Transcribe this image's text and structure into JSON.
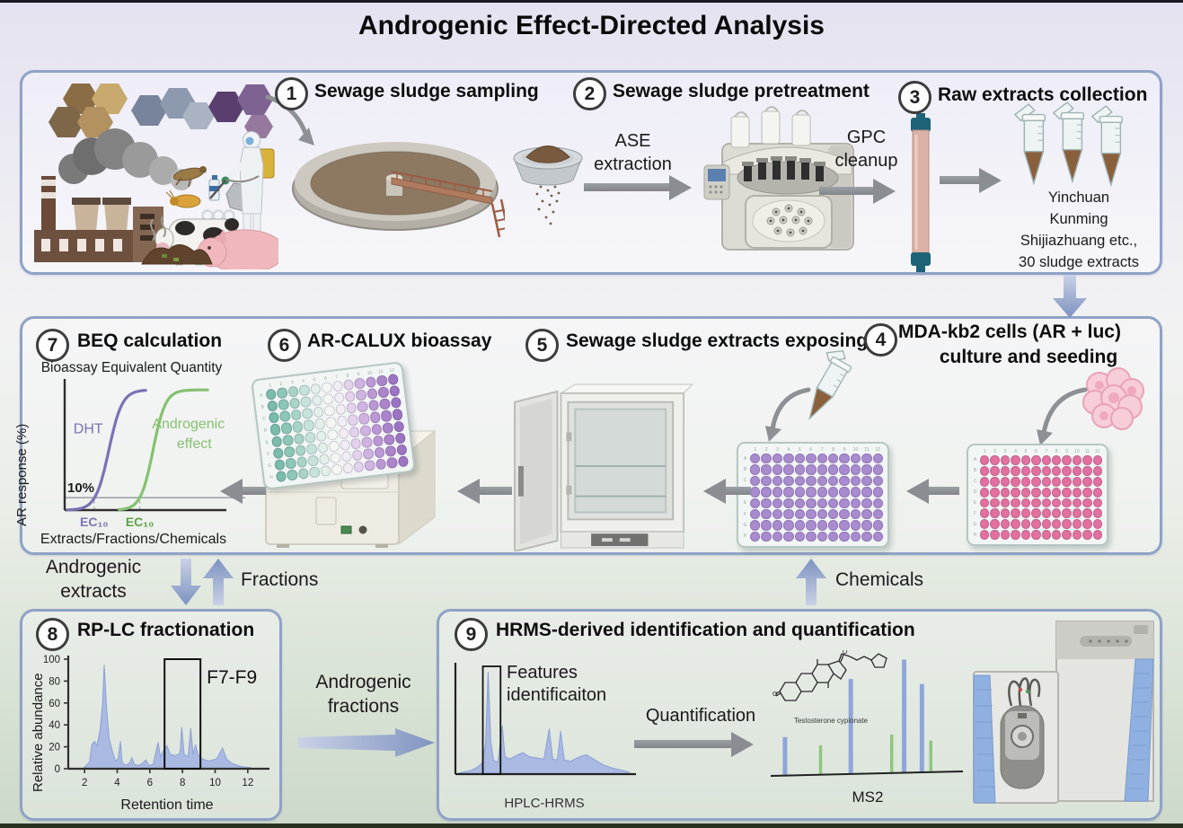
{
  "title": "Androgenic Effect-Directed Analysis",
  "colors": {
    "panel_border": "#8fa2c6",
    "arrow_gray": "#8a8e92",
    "arrow_blue": "#8094c1",
    "chromatogram_fill": "#aab9e2",
    "dht_purple": "#7a72b5",
    "androgenic_green": "#85c170",
    "well_pink": "#e3709f",
    "well_purple": "#a98bcf"
  },
  "steps": {
    "s1": {
      "num": "1",
      "label": "Sewage sludge sampling"
    },
    "s2": {
      "num": "2",
      "label": "Sewage sludge pretreatment"
    },
    "s3": {
      "num": "3",
      "label": "Raw extracts collection"
    },
    "s4": {
      "num": "4",
      "label_line1": "MDA-kb2 cells (AR + luc)",
      "label_line2": "culture and seeding"
    },
    "s5": {
      "num": "5",
      "label": "Sewage sludge extracts exposing"
    },
    "s6": {
      "num": "6",
      "label": "AR-CALUX bioassay"
    },
    "s7": {
      "num": "7",
      "label": "BEQ calculation",
      "subtitle": "Bioassay Equivalent Quantity"
    },
    "s8": {
      "num": "8",
      "label": "RP-LC fractionation"
    },
    "s9": {
      "num": "9",
      "label": "HRMS-derived identification and quantification"
    }
  },
  "top_panel": {
    "ase": {
      "line1": "ASE",
      "line2": "extraction"
    },
    "gpc": {
      "line1": "GPC",
      "line2": "cleanup"
    },
    "extract_lines": [
      "Yinchuan",
      "Kunming",
      "Shijiazhuang etc.,",
      "30 sludge extracts"
    ]
  },
  "flow": {
    "androgenic_extracts": {
      "line1": "Androgenic",
      "line2": "extracts"
    },
    "fractions": "Fractions",
    "chemicals": "Chemicals",
    "androgenic_fractions": {
      "line1": "Androgenic",
      "line2": "fractions"
    }
  },
  "bottom_right": {
    "features": {
      "line1": "Features",
      "line2": "identificaiton"
    },
    "quantification": "Quantification",
    "molecule_label": "Testosterone cypionate"
  },
  "plates": {
    "row_labels": [
      "A",
      "B",
      "C",
      "D",
      "E",
      "F",
      "G",
      "H"
    ],
    "col_labels": [
      "1",
      "2",
      "3",
      "4",
      "5",
      "6",
      "7",
      "8",
      "9",
      "10",
      "11",
      "12"
    ],
    "pink_cols": [
      "#e3709f",
      "#e3709f",
      "#e3709f",
      "#e3709f",
      "#e3709f",
      "#e3709f",
      "#e3709f",
      "#e3709f",
      "#e3709f",
      "#e3709f",
      "#e3709f",
      "#e3709f"
    ],
    "purple_cols": [
      "#a98bcf",
      "#a98bcf",
      "#a98bcf",
      "#a98bcf",
      "#a98bcf",
      "#a98bcf",
      "#a98bcf",
      "#a98bcf",
      "#a98bcf",
      "#a98bcf",
      "#a98bcf",
      "#a98bcf"
    ],
    "gradient_cols": [
      "#79bcab",
      "#8cc6b7",
      "#a8d4c8",
      "#c6e3da",
      "#e2f0ea",
      "#f4f6f3",
      "#f2ecf5",
      "#e3d2ec",
      "#cfb3e0",
      "#bb97d4",
      "#ab84ca",
      "#9d74c2"
    ]
  },
  "chart_data": [
    {
      "id": "beq",
      "type": "line",
      "title": "BEQ calculation dose-response",
      "ylabel": "AR response (%)",
      "xlabel": "Extracts/Fractions/Chemicals",
      "threshold_label": "10%",
      "threshold_pct": 10,
      "series": [
        {
          "name": "DHT",
          "color": "#7a72b5",
          "label_lines": [
            "DHT"
          ],
          "sigmoid_mid": 0.3,
          "sigmoid_k": 0.045,
          "t0": 0.02,
          "t1": 0.56
        },
        {
          "name": "Androgenic effect",
          "color": "#85c170",
          "label_lines": [
            "Androgenic",
            "effect"
          ],
          "sigmoid_mid": 0.6,
          "sigmoid_k": 0.042,
          "t0": 0.37,
          "t1": 0.98
        }
      ],
      "ec10": [
        {
          "label": "EC₁₀",
          "t": 0.2,
          "color": "#7a72b5"
        },
        {
          "label": "EC₁₀",
          "t": 0.51,
          "color": "#5ea14b"
        }
      ]
    },
    {
      "id": "rplc",
      "type": "area",
      "title": "RP-LC fractionation",
      "xlabel": "Retention time",
      "ylabel": "Relative abundance",
      "xlim": [
        1,
        13
      ],
      "ylim": [
        0,
        100
      ],
      "xticks": [
        2,
        4,
        6,
        8,
        10,
        12
      ],
      "yticks": [
        0,
        20,
        40,
        60,
        80,
        100
      ],
      "fill": "#aab9e2",
      "stroke": "#8ba0d6",
      "points": [
        [
          1.9,
          0
        ],
        [
          2.3,
          6
        ],
        [
          2.45,
          22
        ],
        [
          2.6,
          25
        ],
        [
          2.75,
          21
        ],
        [
          2.95,
          35
        ],
        [
          3.1,
          60
        ],
        [
          3.2,
          95
        ],
        [
          3.35,
          55
        ],
        [
          3.5,
          28
        ],
        [
          3.7,
          16
        ],
        [
          3.9,
          7
        ],
        [
          4.05,
          9
        ],
        [
          4.2,
          25
        ],
        [
          4.3,
          6
        ],
        [
          4.5,
          3
        ],
        [
          4.75,
          5
        ],
        [
          4.9,
          10
        ],
        [
          5.05,
          4
        ],
        [
          5.3,
          3
        ],
        [
          5.55,
          5
        ],
        [
          5.75,
          8
        ],
        [
          5.95,
          3
        ],
        [
          6.2,
          4
        ],
        [
          6.5,
          24
        ],
        [
          6.65,
          11
        ],
        [
          6.85,
          17
        ],
        [
          7.05,
          21
        ],
        [
          7.25,
          13
        ],
        [
          7.55,
          12
        ],
        [
          7.85,
          14
        ],
        [
          7.95,
          38
        ],
        [
          8.1,
          13
        ],
        [
          8.35,
          11
        ],
        [
          8.5,
          37
        ],
        [
          8.65,
          13
        ],
        [
          8.8,
          22
        ],
        [
          8.95,
          13
        ],
        [
          9.2,
          9
        ],
        [
          9.6,
          7
        ],
        [
          10.1,
          9
        ],
        [
          10.45,
          19
        ],
        [
          10.7,
          9
        ],
        [
          11.0,
          5
        ],
        [
          11.6,
          2
        ],
        [
          12.2,
          1
        ]
      ],
      "highlight_box": {
        "x1": 6.9,
        "x2": 9.1,
        "top": 100,
        "label": "F7-F9"
      }
    },
    {
      "id": "hplc",
      "type": "area",
      "caption": "HPLC-HRMS",
      "xlim": [
        0,
        100
      ],
      "ylim": [
        0,
        100
      ],
      "fill": "#aab9e2",
      "stroke": "#8ba0d6",
      "points": [
        [
          2,
          1
        ],
        [
          8,
          3
        ],
        [
          12,
          6
        ],
        [
          15,
          10
        ],
        [
          17,
          28
        ],
        [
          18.5,
          95
        ],
        [
          20,
          30
        ],
        [
          21.5,
          13
        ],
        [
          24,
          11
        ],
        [
          26.5,
          45
        ],
        [
          28,
          16
        ],
        [
          31,
          14
        ],
        [
          34,
          17
        ],
        [
          38,
          20
        ],
        [
          42,
          16
        ],
        [
          46,
          15
        ],
        [
          50,
          14
        ],
        [
          53,
          42
        ],
        [
          55,
          14
        ],
        [
          57.5,
          13
        ],
        [
          59.5,
          40
        ],
        [
          61.5,
          13
        ],
        [
          65,
          12
        ],
        [
          70,
          16
        ],
        [
          74,
          18
        ],
        [
          78,
          14
        ],
        [
          83,
          9
        ],
        [
          88,
          6
        ],
        [
          93,
          4
        ],
        [
          98,
          2
        ]
      ],
      "feature_box": {
        "x1": 15.5,
        "x2": 25.5
      }
    },
    {
      "id": "ms2",
      "type": "stick",
      "caption": "MS2",
      "bars": [
        {
          "x": 0.05,
          "h": 34,
          "color": "#8ea6d8"
        },
        {
          "x": 0.25,
          "h": 26,
          "color": "#90c57e"
        },
        {
          "x": 0.42,
          "h": 84,
          "color": "#8ea6d8"
        },
        {
          "x": 0.65,
          "h": 34,
          "color": "#90c57e"
        },
        {
          "x": 0.72,
          "h": 100,
          "color": "#8ea6d8"
        },
        {
          "x": 0.82,
          "h": 78,
          "color": "#8ea6d8"
        },
        {
          "x": 0.87,
          "h": 28,
          "color": "#90c57e"
        }
      ]
    }
  ]
}
